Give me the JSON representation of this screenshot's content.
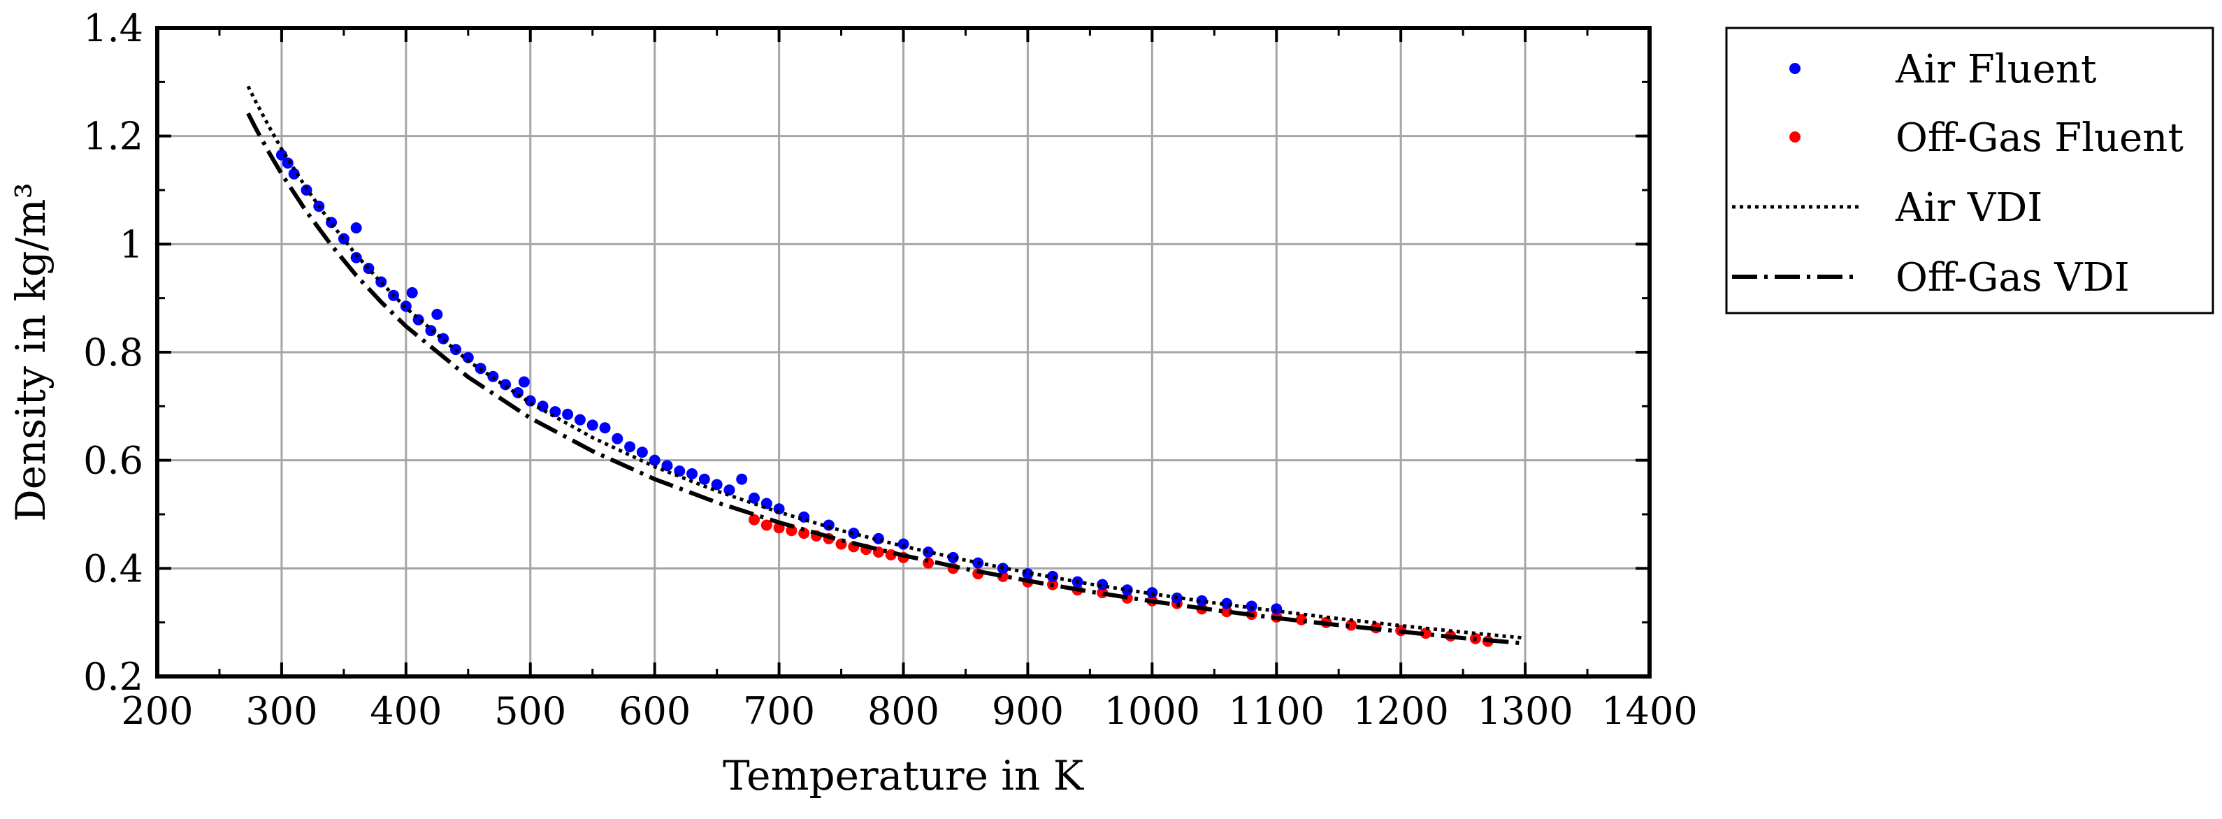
{
  "chart_data": {
    "type": "scatter",
    "title": "",
    "xlabel": "Temperature in K",
    "ylabel": "Density in kg/m³",
    "xlim": [
      200,
      1400
    ],
    "ylim": [
      0.2,
      1.4
    ],
    "xticks": [
      200,
      300,
      400,
      500,
      600,
      700,
      800,
      900,
      1000,
      1100,
      1200,
      1300,
      1400
    ],
    "yticks": [
      0.2,
      0.4,
      0.6,
      0.8,
      1.0,
      1.2,
      1.4
    ],
    "ytick_labels": [
      "0.2",
      "0.4",
      "0.6",
      "0.8",
      "1",
      "1.2",
      "1.4"
    ],
    "grid": true,
    "legend_position": "outside-right-top",
    "series": [
      {
        "name": "Air Fluent",
        "kind": "scatter",
        "color": "#0000ff",
        "x": [
          300,
          305,
          310,
          320,
          330,
          340,
          350,
          360,
          360,
          370,
          380,
          390,
          400,
          405,
          410,
          420,
          425,
          430,
          440,
          450,
          460,
          470,
          480,
          490,
          495,
          500,
          510,
          520,
          530,
          540,
          550,
          560,
          570,
          580,
          590,
          600,
          610,
          620,
          630,
          640,
          650,
          660,
          670,
          680,
          690,
          700,
          720,
          740,
          760,
          780,
          800,
          820,
          840,
          860,
          880,
          900,
          920,
          940,
          960,
          980,
          1000,
          1020,
          1040,
          1060,
          1080,
          1100
        ],
        "y": [
          1.165,
          1.15,
          1.13,
          1.1,
          1.07,
          1.04,
          1.01,
          1.03,
          0.975,
          0.955,
          0.93,
          0.905,
          0.885,
          0.91,
          0.86,
          0.84,
          0.87,
          0.825,
          0.805,
          0.79,
          0.77,
          0.755,
          0.74,
          0.725,
          0.745,
          0.71,
          0.7,
          0.69,
          0.685,
          0.675,
          0.665,
          0.66,
          0.64,
          0.625,
          0.615,
          0.6,
          0.59,
          0.58,
          0.575,
          0.565,
          0.555,
          0.545,
          0.565,
          0.53,
          0.52,
          0.51,
          0.495,
          0.48,
          0.465,
          0.455,
          0.445,
          0.43,
          0.42,
          0.41,
          0.4,
          0.39,
          0.385,
          0.375,
          0.37,
          0.36,
          0.355,
          0.345,
          0.34,
          0.335,
          0.33,
          0.325
        ]
      },
      {
        "name": "Off-Gas Fluent",
        "kind": "scatter",
        "color": "#ff0000",
        "x": [
          680,
          690,
          700,
          710,
          720,
          730,
          740,
          750,
          760,
          770,
          780,
          790,
          800,
          820,
          840,
          860,
          880,
          900,
          920,
          940,
          960,
          980,
          1000,
          1020,
          1040,
          1060,
          1080,
          1100,
          1120,
          1140,
          1160,
          1180,
          1200,
          1220,
          1240,
          1260,
          1270
        ],
        "y": [
          0.49,
          0.48,
          0.475,
          0.47,
          0.465,
          0.46,
          0.455,
          0.445,
          0.44,
          0.435,
          0.43,
          0.425,
          0.42,
          0.41,
          0.4,
          0.39,
          0.385,
          0.375,
          0.37,
          0.36,
          0.355,
          0.345,
          0.34,
          0.335,
          0.325,
          0.32,
          0.315,
          0.31,
          0.305,
          0.3,
          0.295,
          0.29,
          0.285,
          0.28,
          0.275,
          0.27,
          0.265
        ]
      },
      {
        "name": "Air VDI",
        "kind": "line",
        "style": "dotted",
        "color": "#000000",
        "x": [
          273,
          280,
          290,
          300,
          320,
          340,
          360,
          380,
          400,
          450,
          500,
          550,
          600,
          650,
          700,
          750,
          800,
          850,
          900,
          950,
          1000,
          1050,
          1100,
          1150,
          1200,
          1250,
          1300
        ],
        "y": [
          1.292,
          1.26,
          1.217,
          1.176,
          1.103,
          1.038,
          0.98,
          0.929,
          0.882,
          0.784,
          0.706,
          0.642,
          0.588,
          0.543,
          0.504,
          0.47,
          0.441,
          0.415,
          0.392,
          0.371,
          0.353,
          0.336,
          0.321,
          0.307,
          0.294,
          0.282,
          0.271
        ]
      },
      {
        "name": "Off-Gas VDI",
        "kind": "line",
        "style": "dash-dot",
        "color": "#000000",
        "x": [
          273,
          280,
          290,
          300,
          320,
          340,
          360,
          380,
          400,
          450,
          500,
          550,
          600,
          650,
          700,
          750,
          800,
          850,
          900,
          950,
          1000,
          1050,
          1100,
          1150,
          1200,
          1250,
          1300
        ],
        "y": [
          1.242,
          1.211,
          1.169,
          1.13,
          1.06,
          0.998,
          0.942,
          0.893,
          0.848,
          0.754,
          0.678,
          0.617,
          0.565,
          0.522,
          0.485,
          0.452,
          0.424,
          0.399,
          0.377,
          0.357,
          0.339,
          0.323,
          0.308,
          0.295,
          0.283,
          0.271,
          0.261
        ]
      }
    ]
  }
}
